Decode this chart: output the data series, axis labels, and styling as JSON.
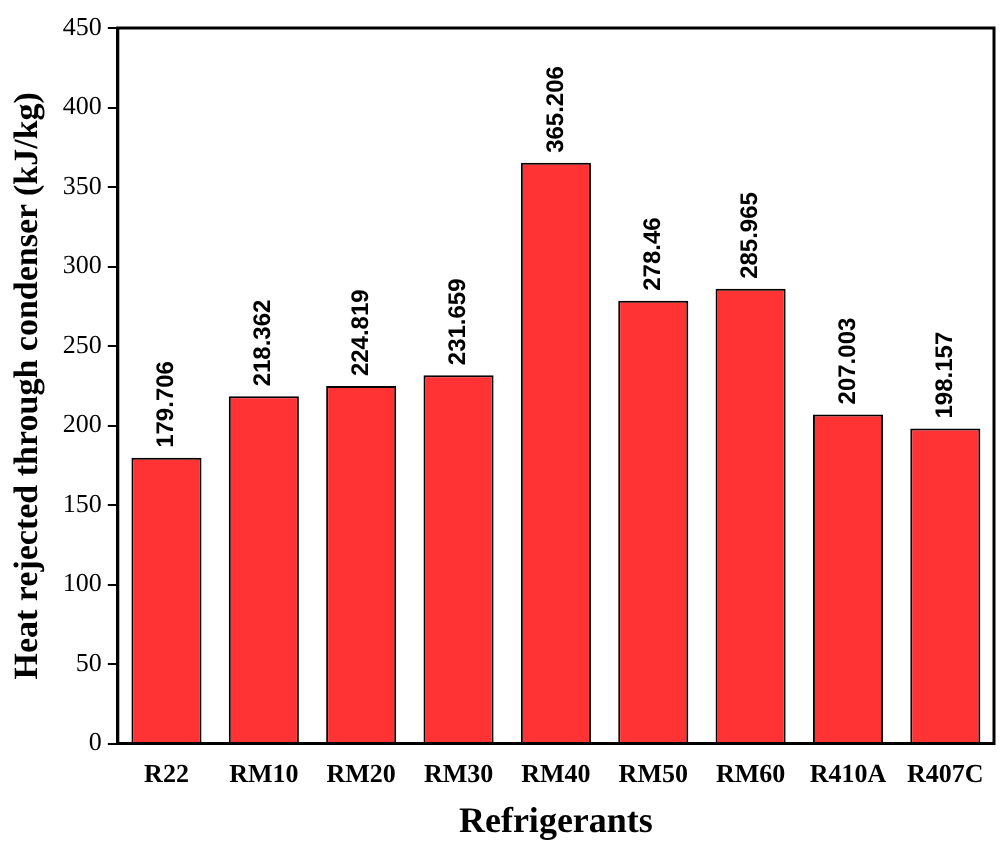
{
  "chart_data": {
    "type": "bar",
    "xlabel": "Refrigerants",
    "ylabel": "Heat rejected through condenser (kJ/kg)",
    "categories": [
      "R22",
      "RM10",
      "RM20",
      "RM30",
      "RM40",
      "RM50",
      "RM60",
      "R410A",
      "R407C"
    ],
    "values": [
      179.706,
      218.362,
      224.819,
      231.659,
      365.206,
      278.46,
      285.965,
      207.003,
      198.157
    ],
    "color": "#ff3333",
    "ylim": [
      0,
      450
    ],
    "yticks": [
      0,
      50,
      100,
      150,
      200,
      250,
      300,
      350,
      400,
      450
    ],
    "grid": false,
    "legend": false,
    "data_labels": true
  }
}
